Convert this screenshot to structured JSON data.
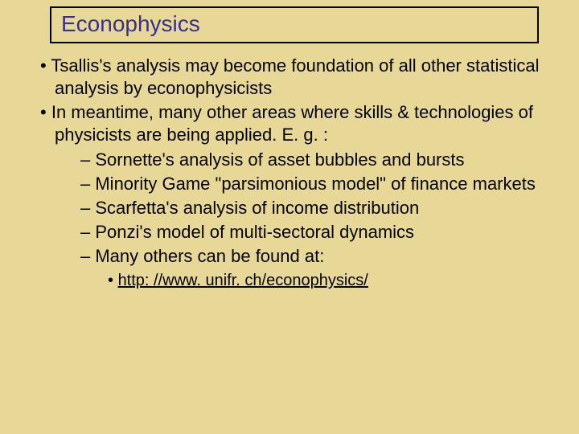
{
  "title": "Econophysics",
  "colors": {
    "background": "#e8d898",
    "title_text": "#3a2f8c",
    "body_text": "#000000",
    "box_border": "#000000"
  },
  "typography": {
    "font_family": "Comic Sans MS",
    "title_fontsize_pt": 28,
    "body_fontsize_pt": 22,
    "sub_fontsize_pt": 20
  },
  "bullets": {
    "b1": "Tsallis's analysis may become foundation of all other statistical analysis by econophysicists",
    "b2": "In meantime, many other areas where skills & technologies of physicists are being applied. E. g. :",
    "b2_sub": {
      "s1": "Sornette's analysis of asset bubbles and bursts",
      "s2": "Minority Game \"parsimonious model\" of finance markets",
      "s3": "Scarfetta's analysis of income distribution",
      "s4": "Ponzi's model of multi-sectoral dynamics",
      "s5": "Many others can be found at:",
      "s5_link": "http: //www. unifr. ch/econophysics/"
    }
  }
}
